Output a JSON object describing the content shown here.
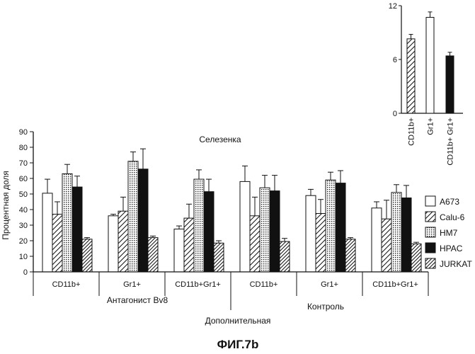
{
  "figure_caption": "ФИГ.7b",
  "colors": {
    "A673": "#ffffff",
    "Calu-6": "#ffffff",
    "HM7": "#e6e6e6",
    "HPAC": "#111111",
    "JURKAT": "#ffffff",
    "stroke": "#111111"
  },
  "chart_data": [
    {
      "type": "bar",
      "title": "Селезенка",
      "ylabel": "Процентная доля",
      "ylim": [
        0,
        90
      ],
      "yticks": [
        0,
        10,
        20,
        30,
        40,
        50,
        60,
        70,
        80,
        90
      ],
      "categories": [
        "CD11b+",
        "Gr1+",
        "CD11b+Gr1+",
        "CD11b+",
        "Gr1+",
        "CD11b+Gr1+"
      ],
      "groups": [
        {
          "label": "Антагонист Bv8",
          "category_indices": [
            0,
            1,
            2
          ]
        },
        {
          "label": "Контроль",
          "category_indices": [
            3,
            4,
            5
          ]
        }
      ],
      "xlabel": "Дополнительная",
      "legend_position": "right",
      "series": [
        {
          "name": "A673",
          "pattern": "plain",
          "values": [
            50.5,
            36,
            27.5,
            58,
            49,
            41
          ],
          "errors": [
            9,
            1,
            2,
            10,
            4,
            4
          ]
        },
        {
          "name": "Calu-6",
          "pattern": "hatch",
          "values": [
            37,
            39,
            34.5,
            36,
            37.5,
            34
          ],
          "errors": [
            8,
            9,
            9,
            12,
            9,
            12
          ]
        },
        {
          "name": "HM7",
          "pattern": "dotted",
          "values": [
            63,
            71,
            59.5,
            54,
            59,
            51
          ],
          "errors": [
            6,
            6,
            6,
            8,
            5,
            5
          ]
        },
        {
          "name": "HPAC",
          "pattern": "solid",
          "values": [
            54.5,
            66,
            51.5,
            52,
            57,
            47.5
          ],
          "errors": [
            7,
            13,
            8,
            10,
            8,
            8
          ]
        },
        {
          "name": "JURKAT",
          "pattern": "hatch2",
          "values": [
            21,
            22,
            18.5,
            19.5,
            21,
            18
          ],
          "errors": [
            1,
            1,
            1.5,
            2,
            1,
            1
          ]
        }
      ]
    },
    {
      "type": "bar",
      "title": "",
      "ylim": [
        0,
        12
      ],
      "yticks": [
        0,
        6,
        12
      ],
      "categories": [
        "CD11b+",
        "Gr1+",
        "CD11b+ Gr1+"
      ],
      "bars": [
        {
          "category": "CD11b+",
          "pattern": "hatch",
          "value": 8.3,
          "error": 0.5
        },
        {
          "category": "Gr1+",
          "pattern": "plain",
          "value": 10.7,
          "error": 0.6
        },
        {
          "category": "CD11b+ Gr1+",
          "pattern": "solid",
          "value": 6.4,
          "error": 0.4
        }
      ]
    }
  ]
}
